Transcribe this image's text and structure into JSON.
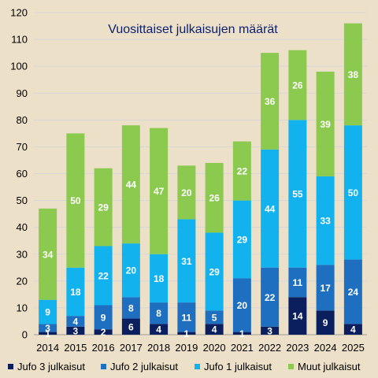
{
  "chart_data": {
    "type": "bar",
    "stacked": true,
    "title": "Vuosittaiset julkaisujen määrät",
    "xlabel": "",
    "ylabel": "",
    "ylim": [
      0,
      120
    ],
    "yticks": [
      0,
      10,
      20,
      30,
      40,
      50,
      60,
      70,
      80,
      90,
      100,
      110,
      120
    ],
    "grid": true,
    "legend": "bottom",
    "categories": [
      "2014",
      "2015",
      "2016",
      "2017",
      "2018",
      "2019",
      "2020",
      "2021",
      "2022",
      "2023",
      "2024",
      "2025"
    ],
    "series": [
      {
        "name": "Jufo 3 julkaisut",
        "color": "#0b1f5e",
        "values": [
          1,
          3,
          2,
          6,
          4,
          1,
          4,
          1,
          3,
          14,
          9,
          4
        ]
      },
      {
        "name": "Jufo 2 julkaisut",
        "color": "#1f6fc0",
        "values": [
          3,
          4,
          9,
          8,
          8,
          11,
          5,
          20,
          22,
          11,
          17,
          24
        ]
      },
      {
        "name": "Jufo 1 julkaisut",
        "color": "#12b2ee",
        "values": [
          9,
          18,
          22,
          20,
          18,
          31,
          29,
          29,
          44,
          55,
          33,
          50
        ]
      },
      {
        "name": "Muut julkaisut",
        "color": "#8cc94f",
        "values": [
          34,
          50,
          29,
          44,
          47,
          20,
          26,
          22,
          36,
          26,
          39,
          38
        ]
      }
    ]
  }
}
